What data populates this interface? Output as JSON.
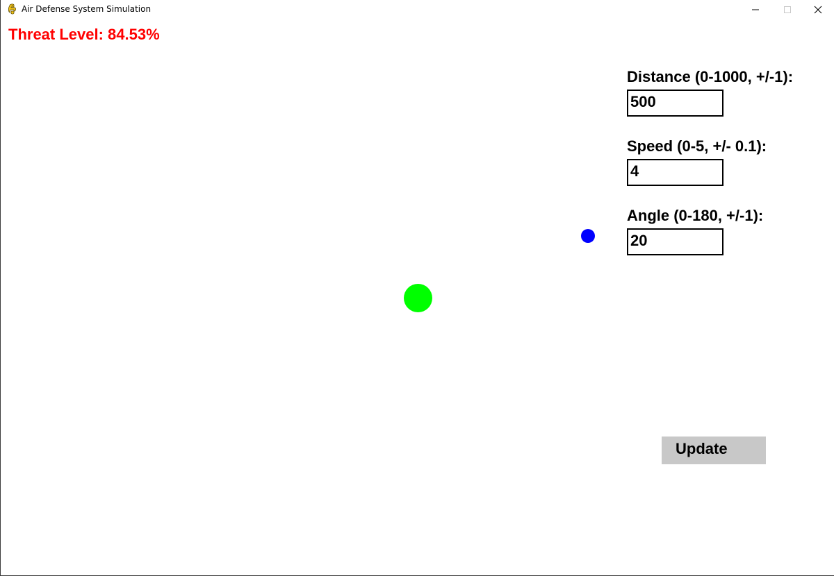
{
  "window": {
    "title": "Air Defense System Simulation",
    "icon": "pygame-snake-icon"
  },
  "threat": {
    "label": "Threat Level: 84.53%",
    "color": "#ff0000"
  },
  "fields": {
    "distance": {
      "label": "Distance (0-1000, +/-1):",
      "value": "500"
    },
    "speed": {
      "label": "Speed (0-5, +/- 0.1):",
      "value": "4"
    },
    "angle": {
      "label": "Angle (0-180, +/-1):",
      "value": "20"
    }
  },
  "update_button": {
    "label": "Update",
    "color": "#c8c8c8"
  },
  "simulation": {
    "base_color": "#00ff00",
    "target_color": "#0000ff"
  }
}
